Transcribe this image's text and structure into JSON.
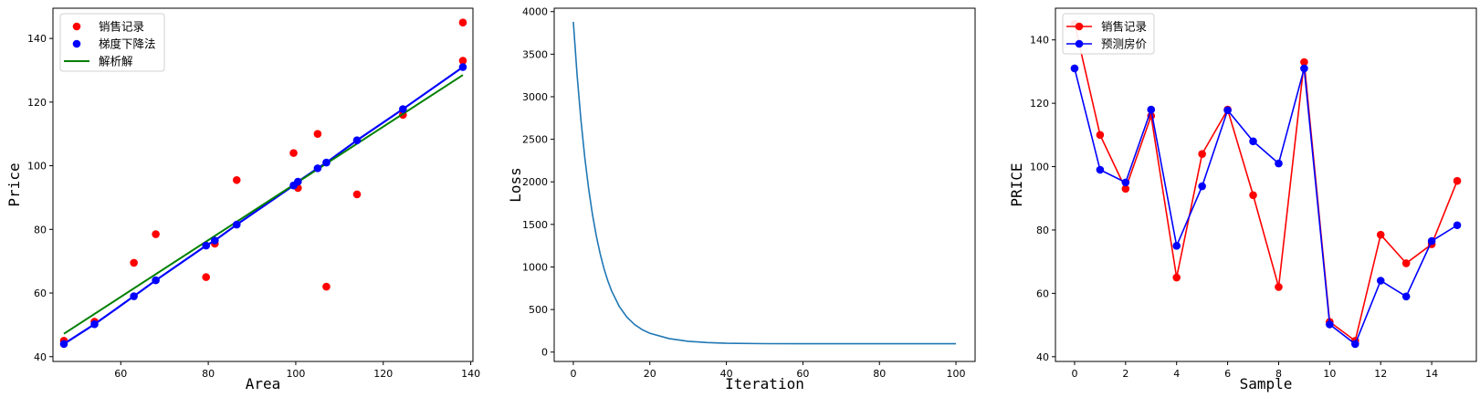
{
  "chart_data": [
    {
      "type": "scatter",
      "xlabel": "Area",
      "ylabel": "Price",
      "xlim": [
        44.5,
        140.5
      ],
      "ylim": [
        38.5,
        149.5
      ],
      "xticks": [
        60,
        80,
        100,
        120,
        140
      ],
      "yticks": [
        40,
        60,
        80,
        100,
        120,
        140
      ],
      "grid": false,
      "legend_position": "top-left",
      "series": [
        {
          "name": "销售记录",
          "kind": "points",
          "color": "#ff0000",
          "x": [
            47,
            54,
            63,
            68,
            79.5,
            81.5,
            86.5,
            99.5,
            100.5,
            105,
            107,
            114,
            124.5,
            138.2,
            138.2
          ],
          "y": [
            45,
            51,
            69.5,
            78.5,
            65,
            75.5,
            95.5,
            104,
            93,
            110,
            62,
            91,
            116,
            145,
            133
          ]
        },
        {
          "name": "梯度下降法",
          "kind": "points+line",
          "color": "#0000ff",
          "x": [
            47,
            54,
            63,
            68,
            79.5,
            81.5,
            86.5,
            99.5,
            100.5,
            105,
            107,
            114,
            124.5,
            138.2
          ],
          "y": [
            44,
            50.2,
            59,
            64,
            74.9,
            76.5,
            81.5,
            93.8,
            95,
            99.2,
            101,
            108,
            117.8,
            131
          ]
        },
        {
          "name": "解析解",
          "kind": "line",
          "color": "#008000",
          "x": [
            47,
            138.2
          ],
          "y": [
            47.2,
            128.5
          ]
        }
      ]
    },
    {
      "type": "line",
      "xlabel": "Iteration",
      "ylabel": "Loss",
      "xlim": [
        -5,
        105
      ],
      "ylim": [
        -110,
        4040
      ],
      "xticks": [
        0,
        20,
        40,
        60,
        80,
        100
      ],
      "yticks": [
        0,
        500,
        1000,
        1500,
        2000,
        2500,
        3000,
        3500,
        4000
      ],
      "grid": false,
      "series": [
        {
          "name": "",
          "color": "#1f77b4",
          "x": [
            0,
            1,
            2,
            3,
            4,
            5,
            6,
            7,
            8,
            9,
            10,
            12,
            14,
            16,
            18,
            20,
            25,
            30,
            35,
            40,
            50,
            60,
            70,
            80,
            90,
            100
          ],
          "y": [
            3880,
            3245,
            2720,
            2283,
            1919,
            1617,
            1366,
            1157,
            983,
            839,
            719,
            537,
            411,
            324,
            263,
            221,
            159,
            127,
            112,
            104,
            99,
            98,
            98,
            98,
            98,
            98
          ]
        }
      ]
    },
    {
      "type": "line",
      "xlabel": "Sample",
      "ylabel": "PRICE",
      "xlim": [
        -0.75,
        15.75
      ],
      "ylim": [
        38.5,
        150
      ],
      "xticks": [
        0,
        2,
        4,
        6,
        8,
        10,
        12,
        14
      ],
      "yticks": [
        40,
        60,
        80,
        100,
        120,
        140
      ],
      "grid": false,
      "legend_position": "top-left",
      "categories": [
        0,
        1,
        2,
        3,
        4,
        5,
        6,
        7,
        8,
        9,
        10,
        11,
        12,
        13,
        14,
        15
      ],
      "series": [
        {
          "name": "销售记录",
          "color": "#ff0000",
          "values": [
            145,
            110,
            93,
            116,
            65,
            104,
            118,
            91,
            62,
            133,
            51,
            45,
            78.5,
            69.5,
            75.5,
            95.5
          ]
        },
        {
          "name": "预测房价",
          "color": "#0000ff",
          "values": [
            131,
            99,
            95,
            118,
            75,
            93.8,
            117.8,
            108,
            101,
            131,
            50.2,
            44,
            64,
            59,
            76.5,
            81.5
          ]
        }
      ]
    }
  ]
}
